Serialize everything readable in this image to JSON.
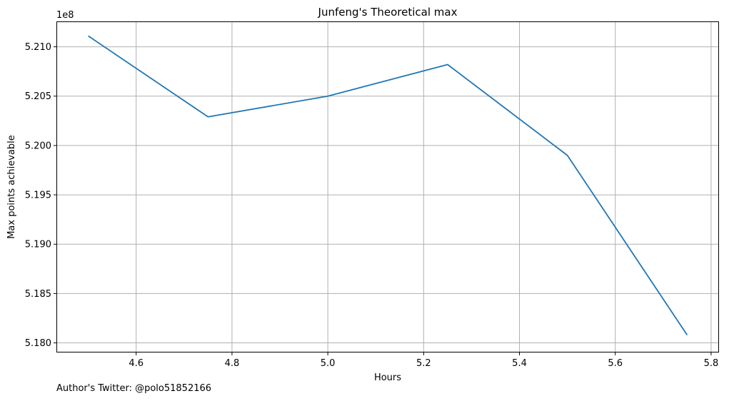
{
  "chart_data": {
    "type": "line",
    "title": "Junfeng's Theoretical max",
    "xlabel": "Hours",
    "ylabel": "Max points achievable",
    "y_offset_label": "1e8",
    "xlim": [
      4.435,
      5.815
    ],
    "ylim": [
      5.1791,
      5.2125
    ],
    "x_ticks": [
      "4.6",
      "4.8",
      "5.0",
      "5.2",
      "5.4",
      "5.6",
      "5.8"
    ],
    "y_ticks": [
      "5.180",
      "5.185",
      "5.190",
      "5.195",
      "5.200",
      "5.205",
      "5.210"
    ],
    "grid": true,
    "series": [
      {
        "color": "#1f77b4",
        "x": [
          4.5,
          4.75,
          5.0,
          5.25,
          5.5,
          5.75
        ],
        "y": [
          5.2111,
          5.2029,
          5.205,
          5.2082,
          5.199,
          5.1808
        ]
      }
    ]
  },
  "footer": {
    "note": "Author's Twitter: @polo51852166"
  }
}
